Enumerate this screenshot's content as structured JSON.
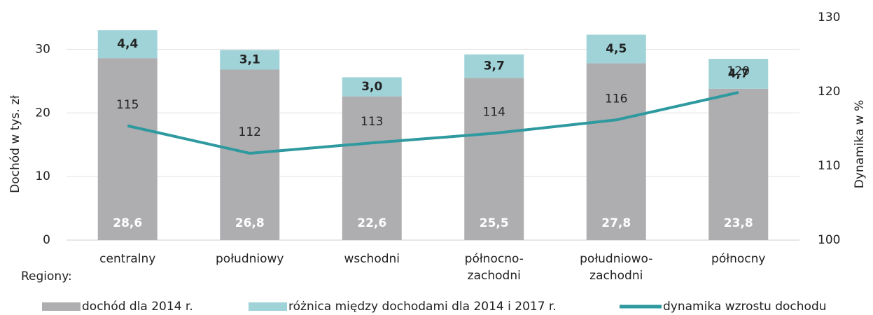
{
  "chart_data": {
    "type": "bar",
    "stacked": true,
    "categories": [
      [
        "centralny"
      ],
      [
        "południowy"
      ],
      [
        "wschodni"
      ],
      [
        "północno-",
        "zachodni"
      ],
      [
        "południowo-",
        "zachodni"
      ],
      [
        "północny"
      ]
    ],
    "x_label": "Regiony:",
    "y_label": "Dochód w tys. zł",
    "y2_label": "Dynamika w %",
    "ylim": [
      0,
      35
    ],
    "yticks": [
      0,
      10,
      20,
      30
    ],
    "y2lim": [
      100,
      130
    ],
    "y2ticks": [
      100,
      110,
      120,
      130
    ],
    "grid": true,
    "legend": "bottom",
    "series": [
      {
        "name": "dochód dla 2014 r.",
        "color": "#aeadaf",
        "type": "bar",
        "values": [
          28.6,
          26.8,
          22.6,
          25.5,
          27.8,
          23.8
        ],
        "value_labels": [
          "28,6",
          "26,8",
          "22,6",
          "25,5",
          "27,8",
          "23,8"
        ]
      },
      {
        "name": "różnica między dochodami dla 2014 i 2017 r.",
        "color": "#9fd3d8",
        "type": "bar",
        "values": [
          4.4,
          3.1,
          3.0,
          3.7,
          4.5,
          4.7
        ],
        "value_labels": [
          "4,4",
          "3,1",
          "3,0",
          "3,7",
          "4,5",
          "4,7"
        ]
      },
      {
        "name": "dynamika wzrostu dochodu",
        "color": "#2e9aa0",
        "type": "line",
        "axis": "y2",
        "values": [
          115.4,
          111.7,
          113.1,
          114.4,
          116.2,
          119.9
        ],
        "value_labels": [
          "115",
          "112",
          "113",
          "114",
          "116",
          "120"
        ]
      }
    ]
  }
}
